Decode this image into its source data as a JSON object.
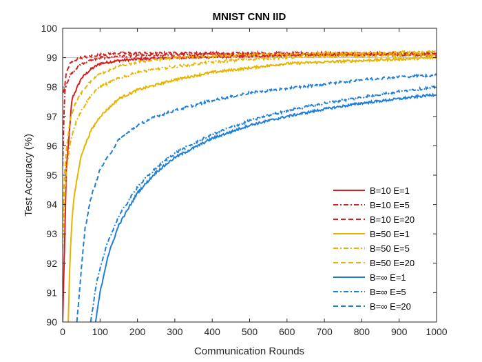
{
  "chart_data": {
    "type": "line",
    "title": "MNIST CNN IID",
    "xlabel": "Communication Rounds",
    "ylabel": "Test Accuracy (%)",
    "xlim": [
      0,
      1000
    ],
    "ylim": [
      90,
      100
    ],
    "xticks": [
      0,
      100,
      200,
      300,
      400,
      500,
      600,
      700,
      800,
      900,
      1000
    ],
    "yticks": [
      90,
      91,
      92,
      93,
      94,
      95,
      96,
      97,
      98,
      99,
      100
    ],
    "xtick_labels": [
      "0",
      "100",
      "200",
      "300",
      "400",
      "500",
      "600",
      "700",
      "800",
      "900",
      "1000"
    ],
    "ytick_labels": [
      "90",
      "91",
      "92",
      "93",
      "94",
      "95",
      "96",
      "97",
      "98",
      "99",
      "100"
    ],
    "grid": false,
    "reference_line": {
      "y": 99,
      "color": "#c0c0c0"
    },
    "legend_position": "bottom-right",
    "series": [
      {
        "name": "B=10 E=1",
        "color": "#d62020",
        "dash": "solid",
        "x": [
          0,
          10,
          25,
          50,
          75,
          100,
          150,
          200,
          300,
          500,
          700,
          1000
        ],
        "y": [
          90.0,
          95.2,
          97.6,
          98.3,
          98.6,
          98.8,
          98.9,
          98.95,
          99.0,
          99.05,
          99.1,
          99.1
        ]
      },
      {
        "name": "B=10 E=5",
        "color": "#d62020",
        "dash": "dashdot",
        "x": [
          0,
          5,
          10,
          20,
          35,
          50,
          75,
          100,
          150,
          300,
          600,
          1000
        ],
        "y": [
          95.3,
          97.8,
          98.1,
          98.4,
          98.6,
          98.8,
          98.9,
          99.0,
          99.05,
          99.1,
          99.1,
          99.1
        ]
      },
      {
        "name": "B=10 E=20",
        "color": "#d62020",
        "dash": "dashed",
        "x": [
          0,
          3,
          5,
          10,
          20,
          30,
          50,
          75,
          100,
          150,
          300,
          600,
          1000
        ],
        "y": [
          97.8,
          97.85,
          98.0,
          98.5,
          98.8,
          98.9,
          99.0,
          99.05,
          99.1,
          99.15,
          99.15,
          99.15,
          99.15
        ]
      },
      {
        "name": "B=50 E=1",
        "color": "#e6b400",
        "dash": "solid",
        "x": [
          15,
          20,
          25,
          30,
          40,
          50,
          75,
          100,
          150,
          200,
          300,
          400,
          500,
          600,
          700,
          800,
          900,
          1000
        ],
        "y": [
          90.0,
          92.3,
          93.5,
          94.2,
          95.0,
          95.7,
          96.5,
          97.0,
          97.6,
          97.9,
          98.25,
          98.5,
          98.65,
          98.8,
          98.85,
          98.9,
          98.95,
          99.0
        ]
      },
      {
        "name": "B=50 E=5",
        "color": "#e6b400",
        "dash": "dashdot",
        "x": [
          0,
          5,
          10,
          20,
          30,
          40,
          50,
          75,
          100,
          150,
          200,
          300,
          400,
          500,
          600,
          700,
          800,
          1000
        ],
        "y": [
          92.5,
          94.2,
          95.1,
          96.1,
          96.6,
          96.95,
          97.2,
          97.7,
          98.0,
          98.3,
          98.5,
          98.7,
          98.85,
          98.95,
          99.0,
          99.05,
          99.05,
          99.1
        ]
      },
      {
        "name": "B=50 E=20",
        "color": "#e6b400",
        "dash": "dashed",
        "x": [
          0,
          5,
          10,
          20,
          30,
          40,
          50,
          75,
          100,
          150,
          200,
          300,
          400,
          500,
          600,
          700,
          800,
          1000
        ],
        "y": [
          93.5,
          95.0,
          95.9,
          96.9,
          97.3,
          97.6,
          97.8,
          98.2,
          98.45,
          98.7,
          98.85,
          99.0,
          99.05,
          99.1,
          99.1,
          99.15,
          99.15,
          99.2
        ]
      },
      {
        "name": "B=∞ E=1",
        "color": "#1f7ed8",
        "dash": "solid",
        "x": [
          88,
          100,
          120,
          150,
          200,
          250,
          300,
          400,
          500,
          600,
          700,
          800,
          900,
          1000
        ],
        "y": [
          90.0,
          91.0,
          92.2,
          93.3,
          94.4,
          95.1,
          95.6,
          96.25,
          96.7,
          97.0,
          97.25,
          97.45,
          97.6,
          97.75
        ]
      },
      {
        "name": "B=∞ E=5",
        "color": "#1f7ed8",
        "dash": "dashdot",
        "x": [
          75,
          90,
          100,
          120,
          150,
          200,
          250,
          300,
          400,
          500,
          600,
          700,
          800,
          900,
          1000
        ],
        "y": [
          90.0,
          91.3,
          91.8,
          92.7,
          93.6,
          94.6,
          95.25,
          95.75,
          96.4,
          96.85,
          97.2,
          97.45,
          97.65,
          97.85,
          98.0
        ]
      },
      {
        "name": "B=∞ E=20",
        "color": "#1f7ed8",
        "dash": "dashed",
        "x": [
          38,
          50,
          60,
          75,
          100,
          150,
          200,
          250,
          300,
          400,
          500,
          600,
          700,
          800,
          900,
          1000
        ],
        "y": [
          90.0,
          91.8,
          93.2,
          94.2,
          95.2,
          96.2,
          96.7,
          97.0,
          97.2,
          97.55,
          97.8,
          97.95,
          98.1,
          98.25,
          98.35,
          98.4
        ]
      }
    ]
  }
}
